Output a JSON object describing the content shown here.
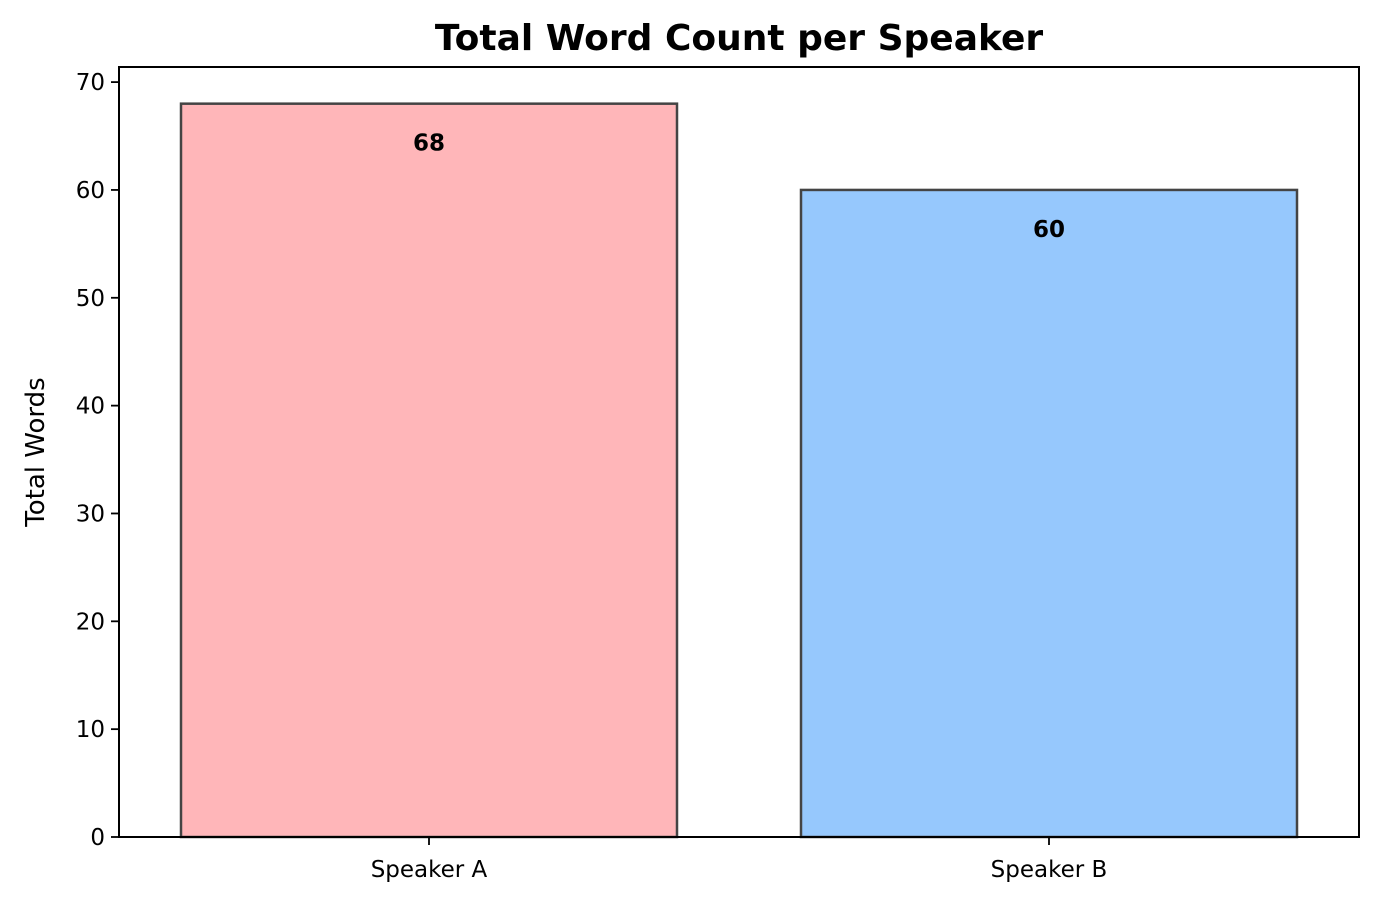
{
  "chart_data": {
    "type": "bar",
    "title": "Total Word Count per Speaker",
    "xlabel": "",
    "ylabel": "Total Words",
    "categories": [
      "Speaker A",
      "Speaker B"
    ],
    "values": [
      68,
      60
    ],
    "data_labels": [
      "68",
      "60"
    ],
    "colors": [
      "#ffb6b9",
      "#96c8fd"
    ],
    "edge_color": "#444444",
    "ylim": [
      0,
      71.4
    ],
    "yticks": [
      0,
      10,
      20,
      30,
      40,
      50,
      60,
      70
    ],
    "grid": false,
    "legend": "none"
  }
}
